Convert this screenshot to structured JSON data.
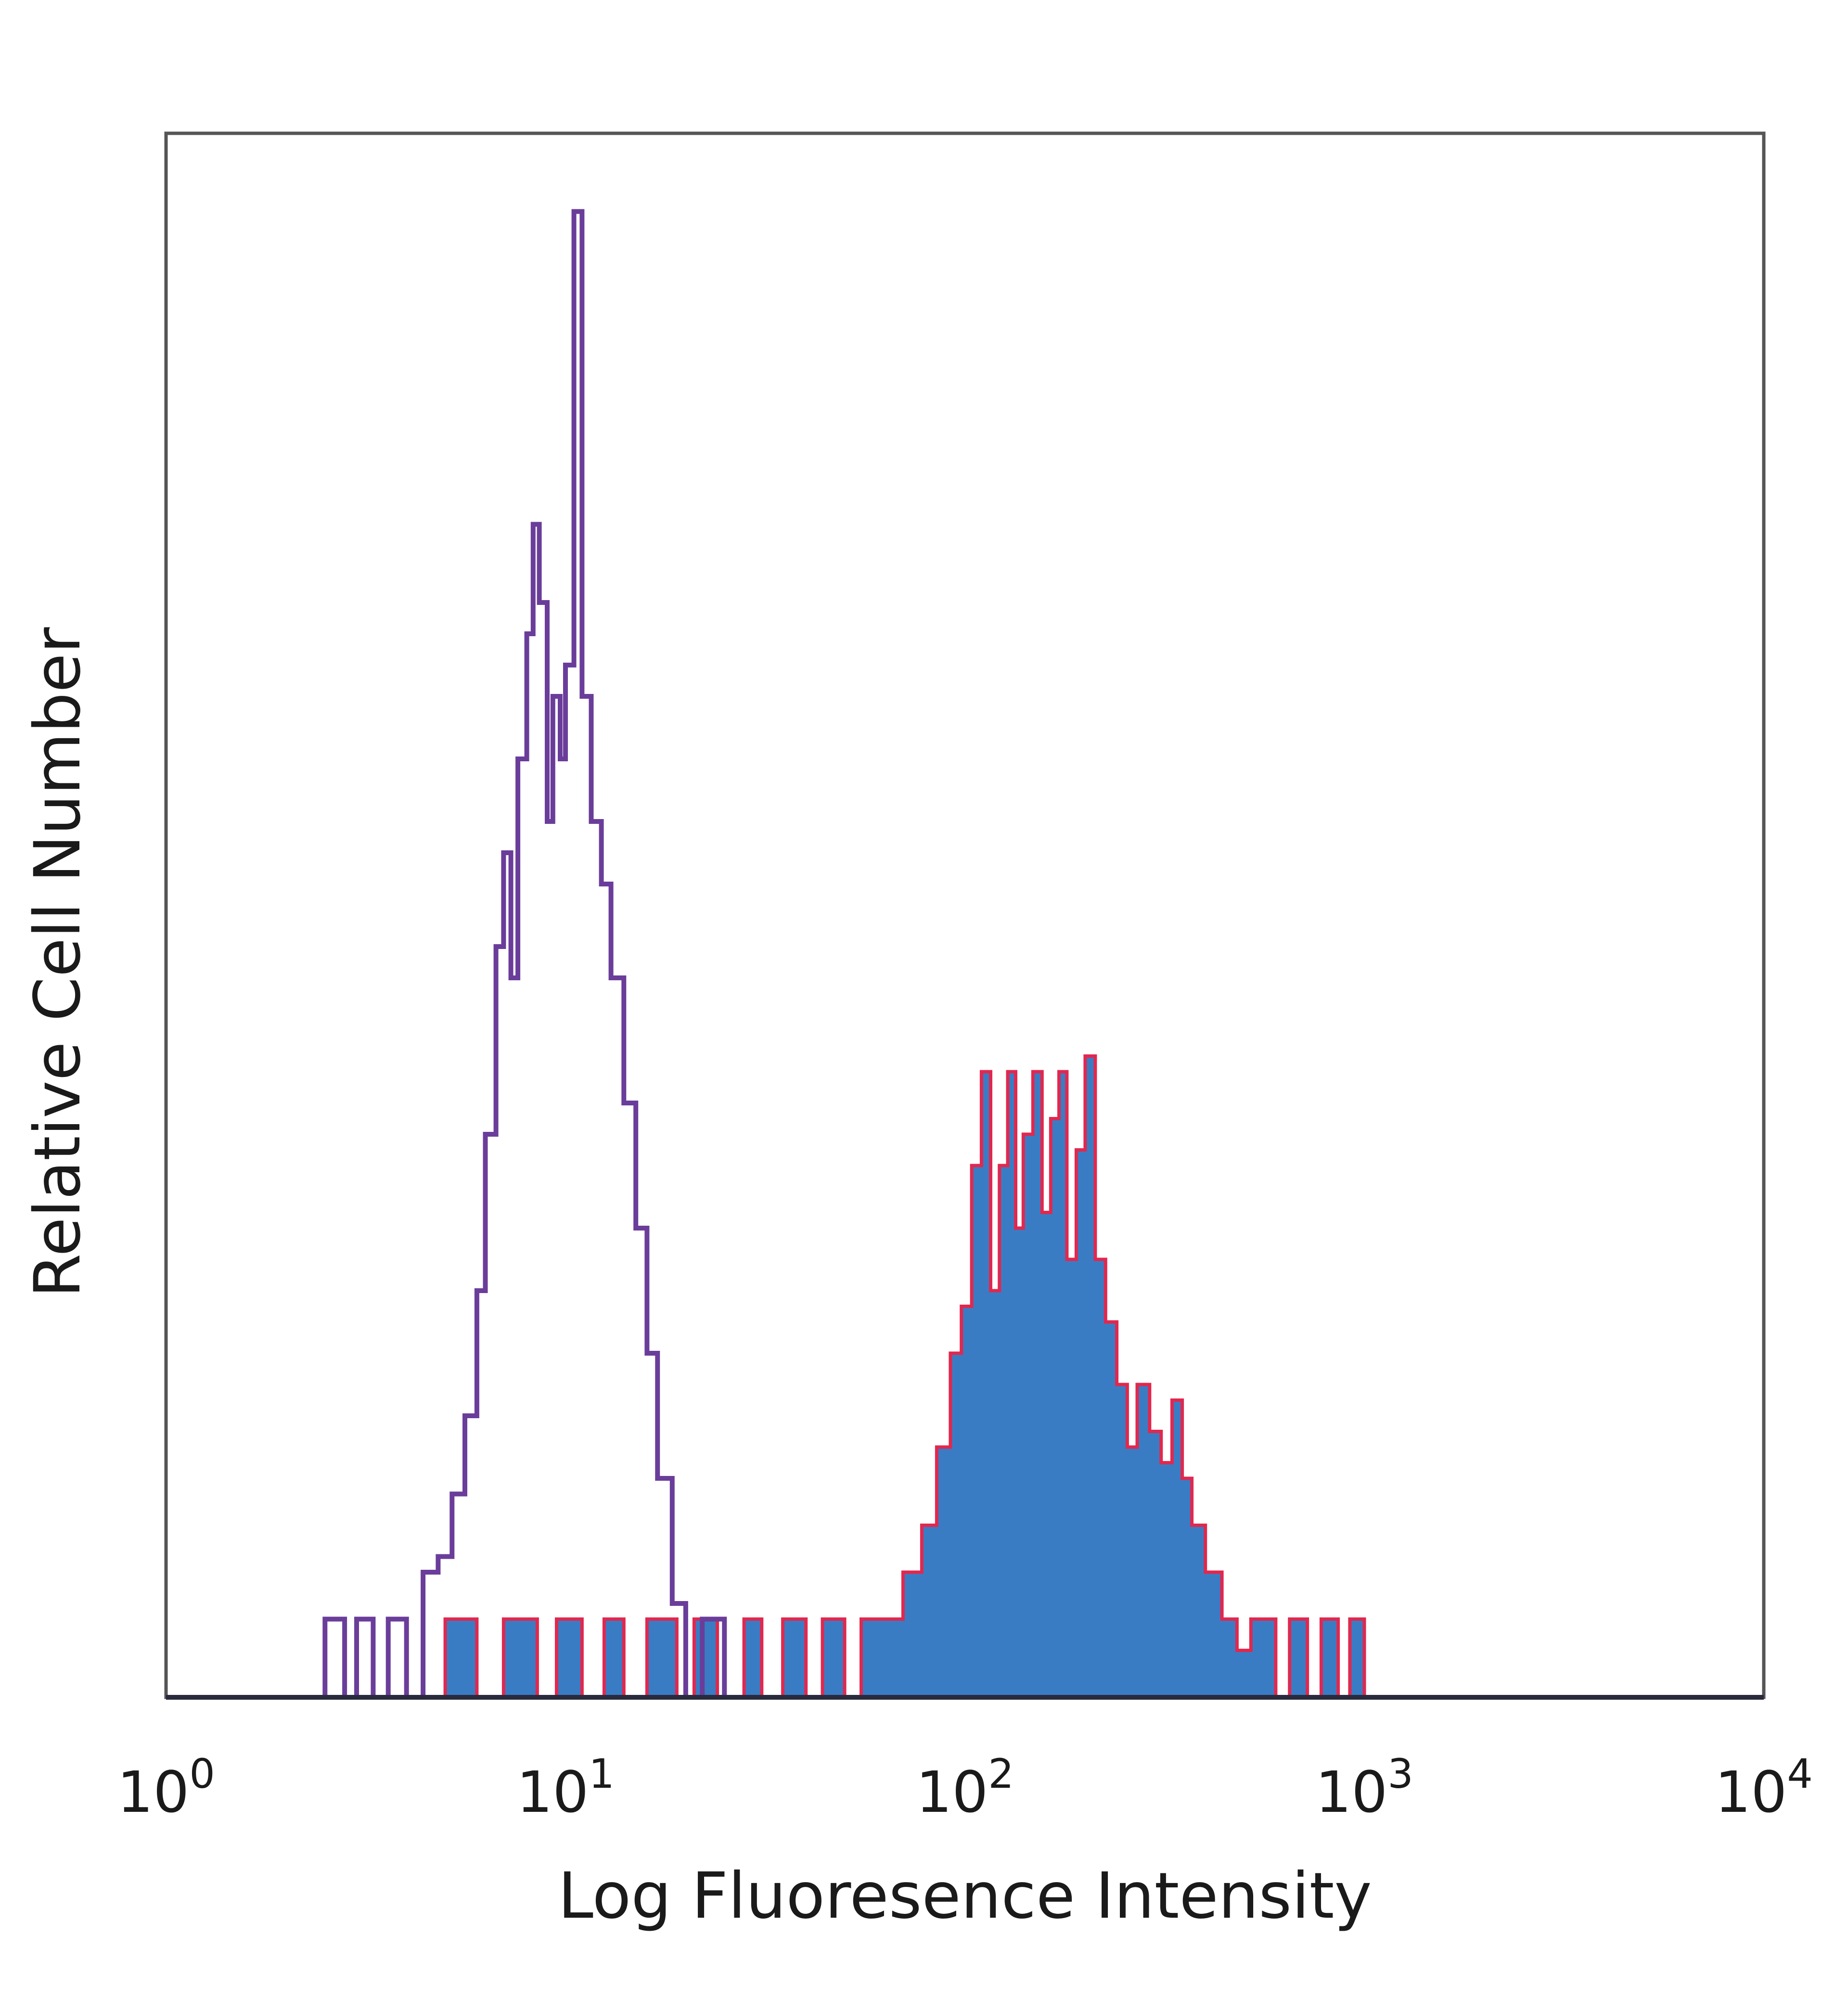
{
  "chart_data": {
    "type": "area",
    "title": "",
    "xlabel": "Log Fluoresence Intensity",
    "ylabel": "Relative Cell Number",
    "x_scale": "log",
    "xlim": [
      1,
      10000
    ],
    "ylim": [
      0,
      100
    ],
    "x_ticks": [
      {
        "base": "10",
        "exp": "0"
      },
      {
        "base": "10",
        "exp": "1"
      },
      {
        "base": "10",
        "exp": "2"
      },
      {
        "base": "10",
        "exp": "3"
      },
      {
        "base": "10",
        "exp": "4"
      }
    ],
    "grid": false,
    "legend": "none",
    "series": [
      {
        "style": "outline",
        "color": "#6a3d9a",
        "points": [
          [
            2.5,
            0
          ],
          [
            2.5,
            5
          ],
          [
            2.8,
            5
          ],
          [
            2.8,
            0
          ],
          [
            3.0,
            0
          ],
          [
            3.0,
            5
          ],
          [
            3.3,
            5
          ],
          [
            3.3,
            0
          ],
          [
            3.6,
            0
          ],
          [
            3.6,
            5
          ],
          [
            4.0,
            5
          ],
          [
            4.0,
            0
          ],
          [
            4.4,
            0
          ],
          [
            4.4,
            8
          ],
          [
            4.8,
            8
          ],
          [
            4.8,
            9
          ],
          [
            5.2,
            9
          ],
          [
            5.2,
            13
          ],
          [
            5.6,
            13
          ],
          [
            5.6,
            18
          ],
          [
            6.0,
            18
          ],
          [
            6.0,
            26
          ],
          [
            6.3,
            26
          ],
          [
            6.3,
            36
          ],
          [
            6.7,
            36
          ],
          [
            6.7,
            48
          ],
          [
            7.0,
            48
          ],
          [
            7.0,
            54
          ],
          [
            7.3,
            54
          ],
          [
            7.3,
            46
          ],
          [
            7.6,
            46
          ],
          [
            7.6,
            60
          ],
          [
            8.0,
            60
          ],
          [
            8.0,
            68
          ],
          [
            8.3,
            68
          ],
          [
            8.3,
            75
          ],
          [
            8.6,
            75
          ],
          [
            8.6,
            70
          ],
          [
            9.0,
            70
          ],
          [
            9.0,
            56
          ],
          [
            9.3,
            56
          ],
          [
            9.3,
            64
          ],
          [
            9.7,
            64
          ],
          [
            9.7,
            60
          ],
          [
            10.0,
            60
          ],
          [
            10.0,
            66
          ],
          [
            10.5,
            66
          ],
          [
            10.5,
            95
          ],
          [
            11.0,
            95
          ],
          [
            11.0,
            64
          ],
          [
            11.6,
            64
          ],
          [
            11.6,
            56
          ],
          [
            12.3,
            56
          ],
          [
            12.3,
            52
          ],
          [
            13.0,
            52
          ],
          [
            13.0,
            46
          ],
          [
            14.0,
            46
          ],
          [
            14.0,
            38
          ],
          [
            15.0,
            38
          ],
          [
            15.0,
            30
          ],
          [
            16.0,
            30
          ],
          [
            16.0,
            22
          ],
          [
            17.0,
            22
          ],
          [
            17.0,
            14
          ],
          [
            18.5,
            14
          ],
          [
            18.5,
            6
          ],
          [
            20.0,
            6
          ],
          [
            20.0,
            0
          ],
          [
            22.0,
            0
          ],
          [
            22.0,
            5
          ],
          [
            25.0,
            5
          ],
          [
            25.0,
            0
          ]
        ]
      },
      {
        "style": "filled",
        "color": "#3a7cc4",
        "outline_color": "#e0284f",
        "points": [
          [
            5.0,
            0
          ],
          [
            5.0,
            5
          ],
          [
            6.0,
            5
          ],
          [
            6.0,
            0
          ],
          [
            7.0,
            0
          ],
          [
            7.0,
            5
          ],
          [
            8.5,
            5
          ],
          [
            8.5,
            0
          ],
          [
            9.5,
            0
          ],
          [
            9.5,
            5
          ],
          [
            11.0,
            5
          ],
          [
            11.0,
            0
          ],
          [
            12.5,
            0
          ],
          [
            12.5,
            5
          ],
          [
            14.0,
            5
          ],
          [
            14.0,
            0
          ],
          [
            16.0,
            0
          ],
          [
            16.0,
            5
          ],
          [
            19.0,
            5
          ],
          [
            19.0,
            0
          ],
          [
            21.0,
            0
          ],
          [
            21.0,
            5
          ],
          [
            24.0,
            5
          ],
          [
            24.0,
            0
          ],
          [
            28.0,
            0
          ],
          [
            28.0,
            5
          ],
          [
            31.0,
            5
          ],
          [
            31.0,
            0
          ],
          [
            35.0,
            0
          ],
          [
            35.0,
            5
          ],
          [
            40.0,
            5
          ],
          [
            40.0,
            0
          ],
          [
            44.0,
            0
          ],
          [
            44.0,
            5
          ],
          [
            50.0,
            5
          ],
          [
            50.0,
            0
          ],
          [
            55.0,
            0
          ],
          [
            55.0,
            5
          ],
          [
            60.0,
            5
          ],
          [
            60.0,
            5
          ],
          [
            70.0,
            5
          ],
          [
            70.0,
            8
          ],
          [
            78.0,
            8
          ],
          [
            78.0,
            11
          ],
          [
            85.0,
            11
          ],
          [
            85.0,
            16
          ],
          [
            92.0,
            16
          ],
          [
            92.0,
            22
          ],
          [
            98.0,
            22
          ],
          [
            98.0,
            25
          ],
          [
            104.0,
            25
          ],
          [
            104.0,
            34
          ],
          [
            110.0,
            34
          ],
          [
            110.0,
            40
          ],
          [
            116.0,
            40
          ],
          [
            116.0,
            26
          ],
          [
            122.0,
            26
          ],
          [
            122.0,
            34
          ],
          [
            128.0,
            34
          ],
          [
            128.0,
            40
          ],
          [
            134.0,
            40
          ],
          [
            134.0,
            30
          ],
          [
            140.0,
            30
          ],
          [
            140.0,
            36
          ],
          [
            148.0,
            36
          ],
          [
            148.0,
            40
          ],
          [
            156.0,
            40
          ],
          [
            156.0,
            31
          ],
          [
            164.0,
            31
          ],
          [
            164.0,
            37
          ],
          [
            172.0,
            37
          ],
          [
            172.0,
            40
          ],
          [
            180.0,
            40
          ],
          [
            180.0,
            28
          ],
          [
            190.0,
            28
          ],
          [
            190.0,
            35
          ],
          [
            200.0,
            35
          ],
          [
            200.0,
            41
          ],
          [
            212.0,
            41
          ],
          [
            212.0,
            28
          ],
          [
            225.0,
            28
          ],
          [
            225.0,
            24
          ],
          [
            240.0,
            24
          ],
          [
            240.0,
            20
          ],
          [
            255.0,
            20
          ],
          [
            255.0,
            16
          ],
          [
            270.0,
            16
          ],
          [
            270.0,
            20
          ],
          [
            290.0,
            20
          ],
          [
            290.0,
            17
          ],
          [
            310.0,
            17
          ],
          [
            310.0,
            15
          ],
          [
            330.0,
            15
          ],
          [
            330.0,
            19
          ],
          [
            350.0,
            19
          ],
          [
            350.0,
            14
          ],
          [
            370.0,
            14
          ],
          [
            370.0,
            11
          ],
          [
            400.0,
            11
          ],
          [
            400.0,
            8
          ],
          [
            440.0,
            8
          ],
          [
            440.0,
            5
          ],
          [
            480.0,
            5
          ],
          [
            480.0,
            3
          ],
          [
            520.0,
            3
          ],
          [
            520.0,
            5
          ],
          [
            600.0,
            5
          ],
          [
            600.0,
            0
          ],
          [
            650.0,
            0
          ],
          [
            650.0,
            5
          ],
          [
            720.0,
            5
          ],
          [
            720.0,
            0
          ],
          [
            780.0,
            0
          ],
          [
            780.0,
            5
          ],
          [
            860.0,
            5
          ],
          [
            860.0,
            0
          ],
          [
            920.0,
            0
          ],
          [
            920.0,
            5
          ],
          [
            1000.0,
            5
          ],
          [
            1000.0,
            0
          ]
        ]
      }
    ]
  }
}
